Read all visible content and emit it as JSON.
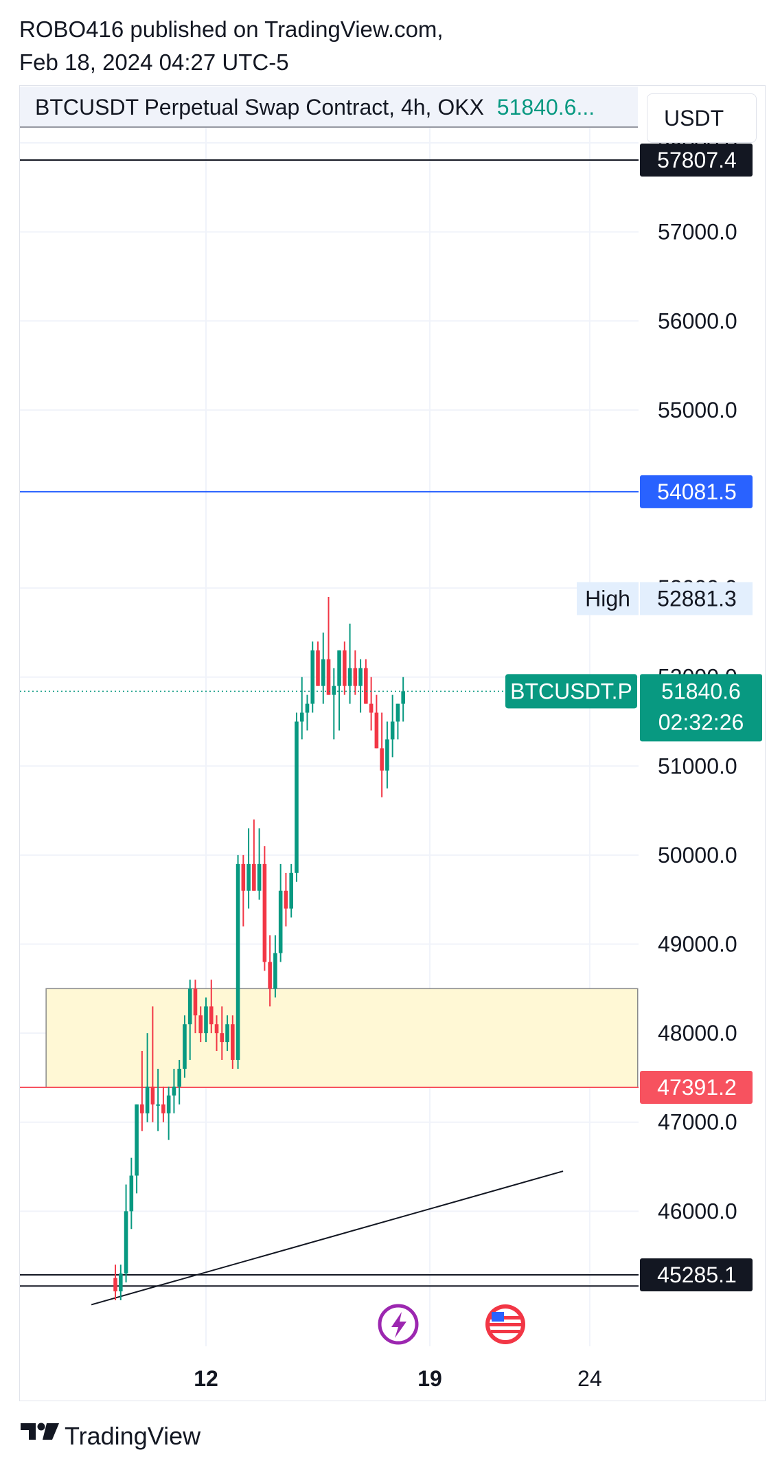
{
  "header": {
    "published_line": "ROBO416 published on TradingView.com,",
    "date_line": "Feb 18, 2024 04:27 UTC-5"
  },
  "legend": {
    "symbol_text": "BTCUSDT Perpetual Swap Contract, 4h, OKX",
    "last_price": "51840.6..."
  },
  "currency": "USDT",
  "footer": {
    "brand": "TradingView"
  },
  "colors": {
    "up": "#089981",
    "down": "#f23645",
    "blue_line": "#2962ff",
    "zone_fill": "#fff8d5",
    "red_level": "#f7525f",
    "dark_badge": "#131722"
  },
  "icons": [
    "lightning-icon",
    "us-flag-icon",
    "tradingview-logo-icon"
  ],
  "chart_data": {
    "type": "candlestick",
    "title": "BTCUSDT Perpetual Swap Contract, 4h, OKX",
    "ylim": [
      45100,
      58400
    ],
    "y_ticks": [
      "58000.0",
      "57000.0",
      "56000.0",
      "55000.0",
      "53000.0",
      "52000.0",
      "51000.0",
      "50000.0",
      "49000.0",
      "48000.0",
      "47000.0",
      "46000.0"
    ],
    "x_ticks": [
      {
        "label": "12",
        "bold": true,
        "date": "2024-02-12"
      },
      {
        "label": "19",
        "bold": true,
        "date": "2024-02-19"
      },
      {
        "label": "24",
        "bold": false,
        "date": "2024-02-24"
      }
    ],
    "first_candle_date": "2024-02-09 04:00",
    "candle_interval": "4h",
    "candles": [
      [
        45250,
        45400,
        45000,
        45100
      ],
      [
        45100,
        45400,
        45000,
        45300
      ],
      [
        45300,
        46300,
        45200,
        46000
      ],
      [
        46000,
        46600,
        45800,
        46400
      ],
      [
        46400,
        47200,
        46200,
        47200
      ],
      [
        47200,
        47800,
        46900,
        47100
      ],
      [
        47100,
        48000,
        47000,
        47400
      ],
      [
        47400,
        48300,
        47000,
        47200
      ],
      [
        47200,
        47600,
        46900,
        47200
      ],
      [
        47200,
        47400,
        47000,
        47100
      ],
      [
        47100,
        47400,
        46800,
        47300
      ],
      [
        47300,
        47600,
        47100,
        47400
      ],
      [
        47400,
        47700,
        47200,
        47600
      ],
      [
        47600,
        48200,
        47500,
        48100
      ],
      [
        48100,
        48600,
        47700,
        48500
      ],
      [
        48500,
        48600,
        48000,
        48200
      ],
      [
        48200,
        48300,
        47900,
        48000
      ],
      [
        48000,
        48400,
        47900,
        48300
      ],
      [
        48300,
        48600,
        48000,
        48100
      ],
      [
        48100,
        48200,
        47800,
        48000
      ],
      [
        48000,
        48300,
        47700,
        47900
      ],
      [
        47900,
        48200,
        47800,
        48100
      ],
      [
        48100,
        48200,
        47600,
        47700
      ],
      [
        47700,
        50000,
        47600,
        49900
      ],
      [
        49900,
        50000,
        49200,
        49600
      ],
      [
        49600,
        50300,
        49400,
        49900
      ],
      [
        49900,
        50400,
        49600,
        49600
      ],
      [
        49600,
        50300,
        49500,
        49900
      ],
      [
        49900,
        50100,
        48700,
        48800
      ],
      [
        48800,
        49100,
        48300,
        48500
      ],
      [
        48500,
        49100,
        48400,
        48900
      ],
      [
        48900,
        49900,
        48800,
        49600
      ],
      [
        49600,
        49800,
        49200,
        49400
      ],
      [
        49400,
        49900,
        49300,
        49800
      ],
      [
        49800,
        51600,
        49700,
        51500
      ],
      [
        51500,
        52000,
        51300,
        51600
      ],
      [
        51600,
        51800,
        51400,
        51700
      ],
      [
        51700,
        52400,
        51600,
        52300
      ],
      [
        52300,
        52400,
        51900,
        51900
      ],
      [
        51900,
        52500,
        51700,
        52200
      ],
      [
        52200,
        52900,
        51800,
        51800
      ],
      [
        51800,
        52100,
        51300,
        51900
      ],
      [
        51900,
        52300,
        51400,
        52300
      ],
      [
        52300,
        52400,
        51800,
        51900
      ],
      [
        51900,
        52600,
        51700,
        52100
      ],
      [
        52100,
        52300,
        51800,
        51900
      ],
      [
        51900,
        52200,
        51600,
        52100
      ],
      [
        52100,
        52200,
        51700,
        51700
      ],
      [
        51700,
        52000,
        51400,
        51600
      ],
      [
        51600,
        51800,
        51200,
        51200
      ],
      [
        51200,
        51600,
        50650,
        50950
      ],
      [
        50950,
        51500,
        50750,
        51300
      ],
      [
        51300,
        51800,
        51100,
        51500
      ],
      [
        51500,
        51700,
        51300,
        51700
      ],
      [
        51700,
        52000,
        51500,
        51840.6
      ]
    ],
    "horizontal_levels": [
      {
        "label": "57807.4",
        "color": "#131722"
      },
      {
        "label": "54081.5",
        "color": "#2962ff"
      },
      {
        "label": "47391.2",
        "color": "#f7525f"
      },
      {
        "label": "45285.1",
        "color": "#131722"
      }
    ],
    "second_black_level": 45160,
    "high_label": {
      "text": "High",
      "value": "52881.3"
    },
    "current": {
      "symbol": "BTCUSDT.P",
      "price": "51840.6",
      "countdown": "02:32:26"
    },
    "zone": {
      "top": 48500,
      "bottom": 47391.2,
      "start_date": "2024-02-07",
      "end_date": "2024-02-25 12:00"
    },
    "trendline": {
      "from_date": "2024-02-08 10:00",
      "from_value": 44950,
      "to_date": "2024-02-23 04:00",
      "to_value": 46450
    },
    "event_icons": [
      "lightning-icon",
      "us-flag-icon"
    ]
  }
}
